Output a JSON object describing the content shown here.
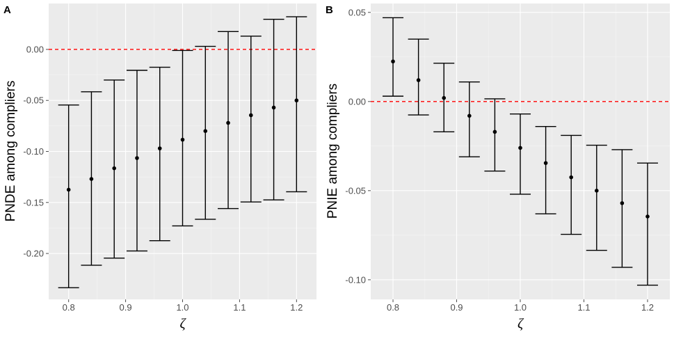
{
  "chart_data": [
    {
      "type": "errorbar",
      "tag": "A",
      "xlabel": "ζ",
      "ylabel": "PNDE among compliers",
      "xlim": [
        0.765,
        1.235
      ],
      "ylim": [
        -0.245,
        0.045
      ],
      "x_ticks": [
        0.8,
        0.9,
        1.0,
        1.1,
        1.2
      ],
      "x_tick_labels": [
        "0.8",
        "0.9",
        "1.0",
        "1.1",
        "1.2"
      ],
      "y_ticks": [
        0.0,
        -0.05,
        -0.1,
        -0.15,
        -0.2
      ],
      "y_tick_labels": [
        "0.00",
        "-0.05",
        "-0.10",
        "-0.15",
        "-0.20"
      ],
      "reference_line": 0.0,
      "points": [
        {
          "x": 0.8,
          "y": -0.1375,
          "lower": -0.2335,
          "upper": -0.0545
        },
        {
          "x": 0.84,
          "y": -0.127,
          "lower": -0.2115,
          "upper": -0.0415
        },
        {
          "x": 0.88,
          "y": -0.1165,
          "lower": -0.2045,
          "upper": -0.03
        },
        {
          "x": 0.92,
          "y": -0.1065,
          "lower": -0.1975,
          "upper": -0.0205
        },
        {
          "x": 0.96,
          "y": -0.097,
          "lower": -0.1875,
          "upper": -0.0175
        },
        {
          "x": 1.0,
          "y": -0.0885,
          "lower": -0.173,
          "upper": -0.001
        },
        {
          "x": 1.04,
          "y": -0.08,
          "lower": -0.1665,
          "upper": 0.003
        },
        {
          "x": 1.08,
          "y": -0.072,
          "lower": -0.156,
          "upper": 0.0175
        },
        {
          "x": 1.12,
          "y": -0.0645,
          "lower": -0.1495,
          "upper": 0.013
        },
        {
          "x": 1.16,
          "y": -0.057,
          "lower": -0.1475,
          "upper": 0.0295
        },
        {
          "x": 1.2,
          "y": -0.05,
          "lower": -0.1395,
          "upper": 0.032
        }
      ]
    },
    {
      "type": "errorbar",
      "tag": "B",
      "xlabel": "ζ",
      "ylabel": "PNIE among compliers",
      "xlim": [
        0.765,
        1.235
      ],
      "ylim": [
        -0.111,
        0.055
      ],
      "x_ticks": [
        0.8,
        0.9,
        1.0,
        1.1,
        1.2
      ],
      "x_tick_labels": [
        "0.8",
        "0.9",
        "1.0",
        "1.1",
        "1.2"
      ],
      "y_ticks": [
        0.05,
        0.0,
        -0.05,
        -0.1
      ],
      "y_tick_labels": [
        "0.05",
        "0.00",
        "-0.05",
        "-0.10"
      ],
      "reference_line": 0.0,
      "points": [
        {
          "x": 0.8,
          "y": 0.0225,
          "lower": 0.003,
          "upper": 0.047
        },
        {
          "x": 0.84,
          "y": 0.012,
          "lower": -0.0075,
          "upper": 0.035
        },
        {
          "x": 0.88,
          "y": 0.002,
          "lower": -0.017,
          "upper": 0.0215
        },
        {
          "x": 0.92,
          "y": -0.008,
          "lower": -0.031,
          "upper": 0.011
        },
        {
          "x": 0.96,
          "y": -0.017,
          "lower": -0.039,
          "upper": 0.0015
        },
        {
          "x": 1.0,
          "y": -0.026,
          "lower": -0.052,
          "upper": -0.007
        },
        {
          "x": 1.04,
          "y": -0.0345,
          "lower": -0.063,
          "upper": -0.014
        },
        {
          "x": 1.08,
          "y": -0.0425,
          "lower": -0.0745,
          "upper": -0.019
        },
        {
          "x": 1.12,
          "y": -0.05,
          "lower": -0.0835,
          "upper": -0.0245
        },
        {
          "x": 1.16,
          "y": -0.057,
          "lower": -0.093,
          "upper": -0.027
        },
        {
          "x": 1.2,
          "y": -0.0645,
          "lower": -0.103,
          "upper": -0.0345
        }
      ]
    }
  ]
}
